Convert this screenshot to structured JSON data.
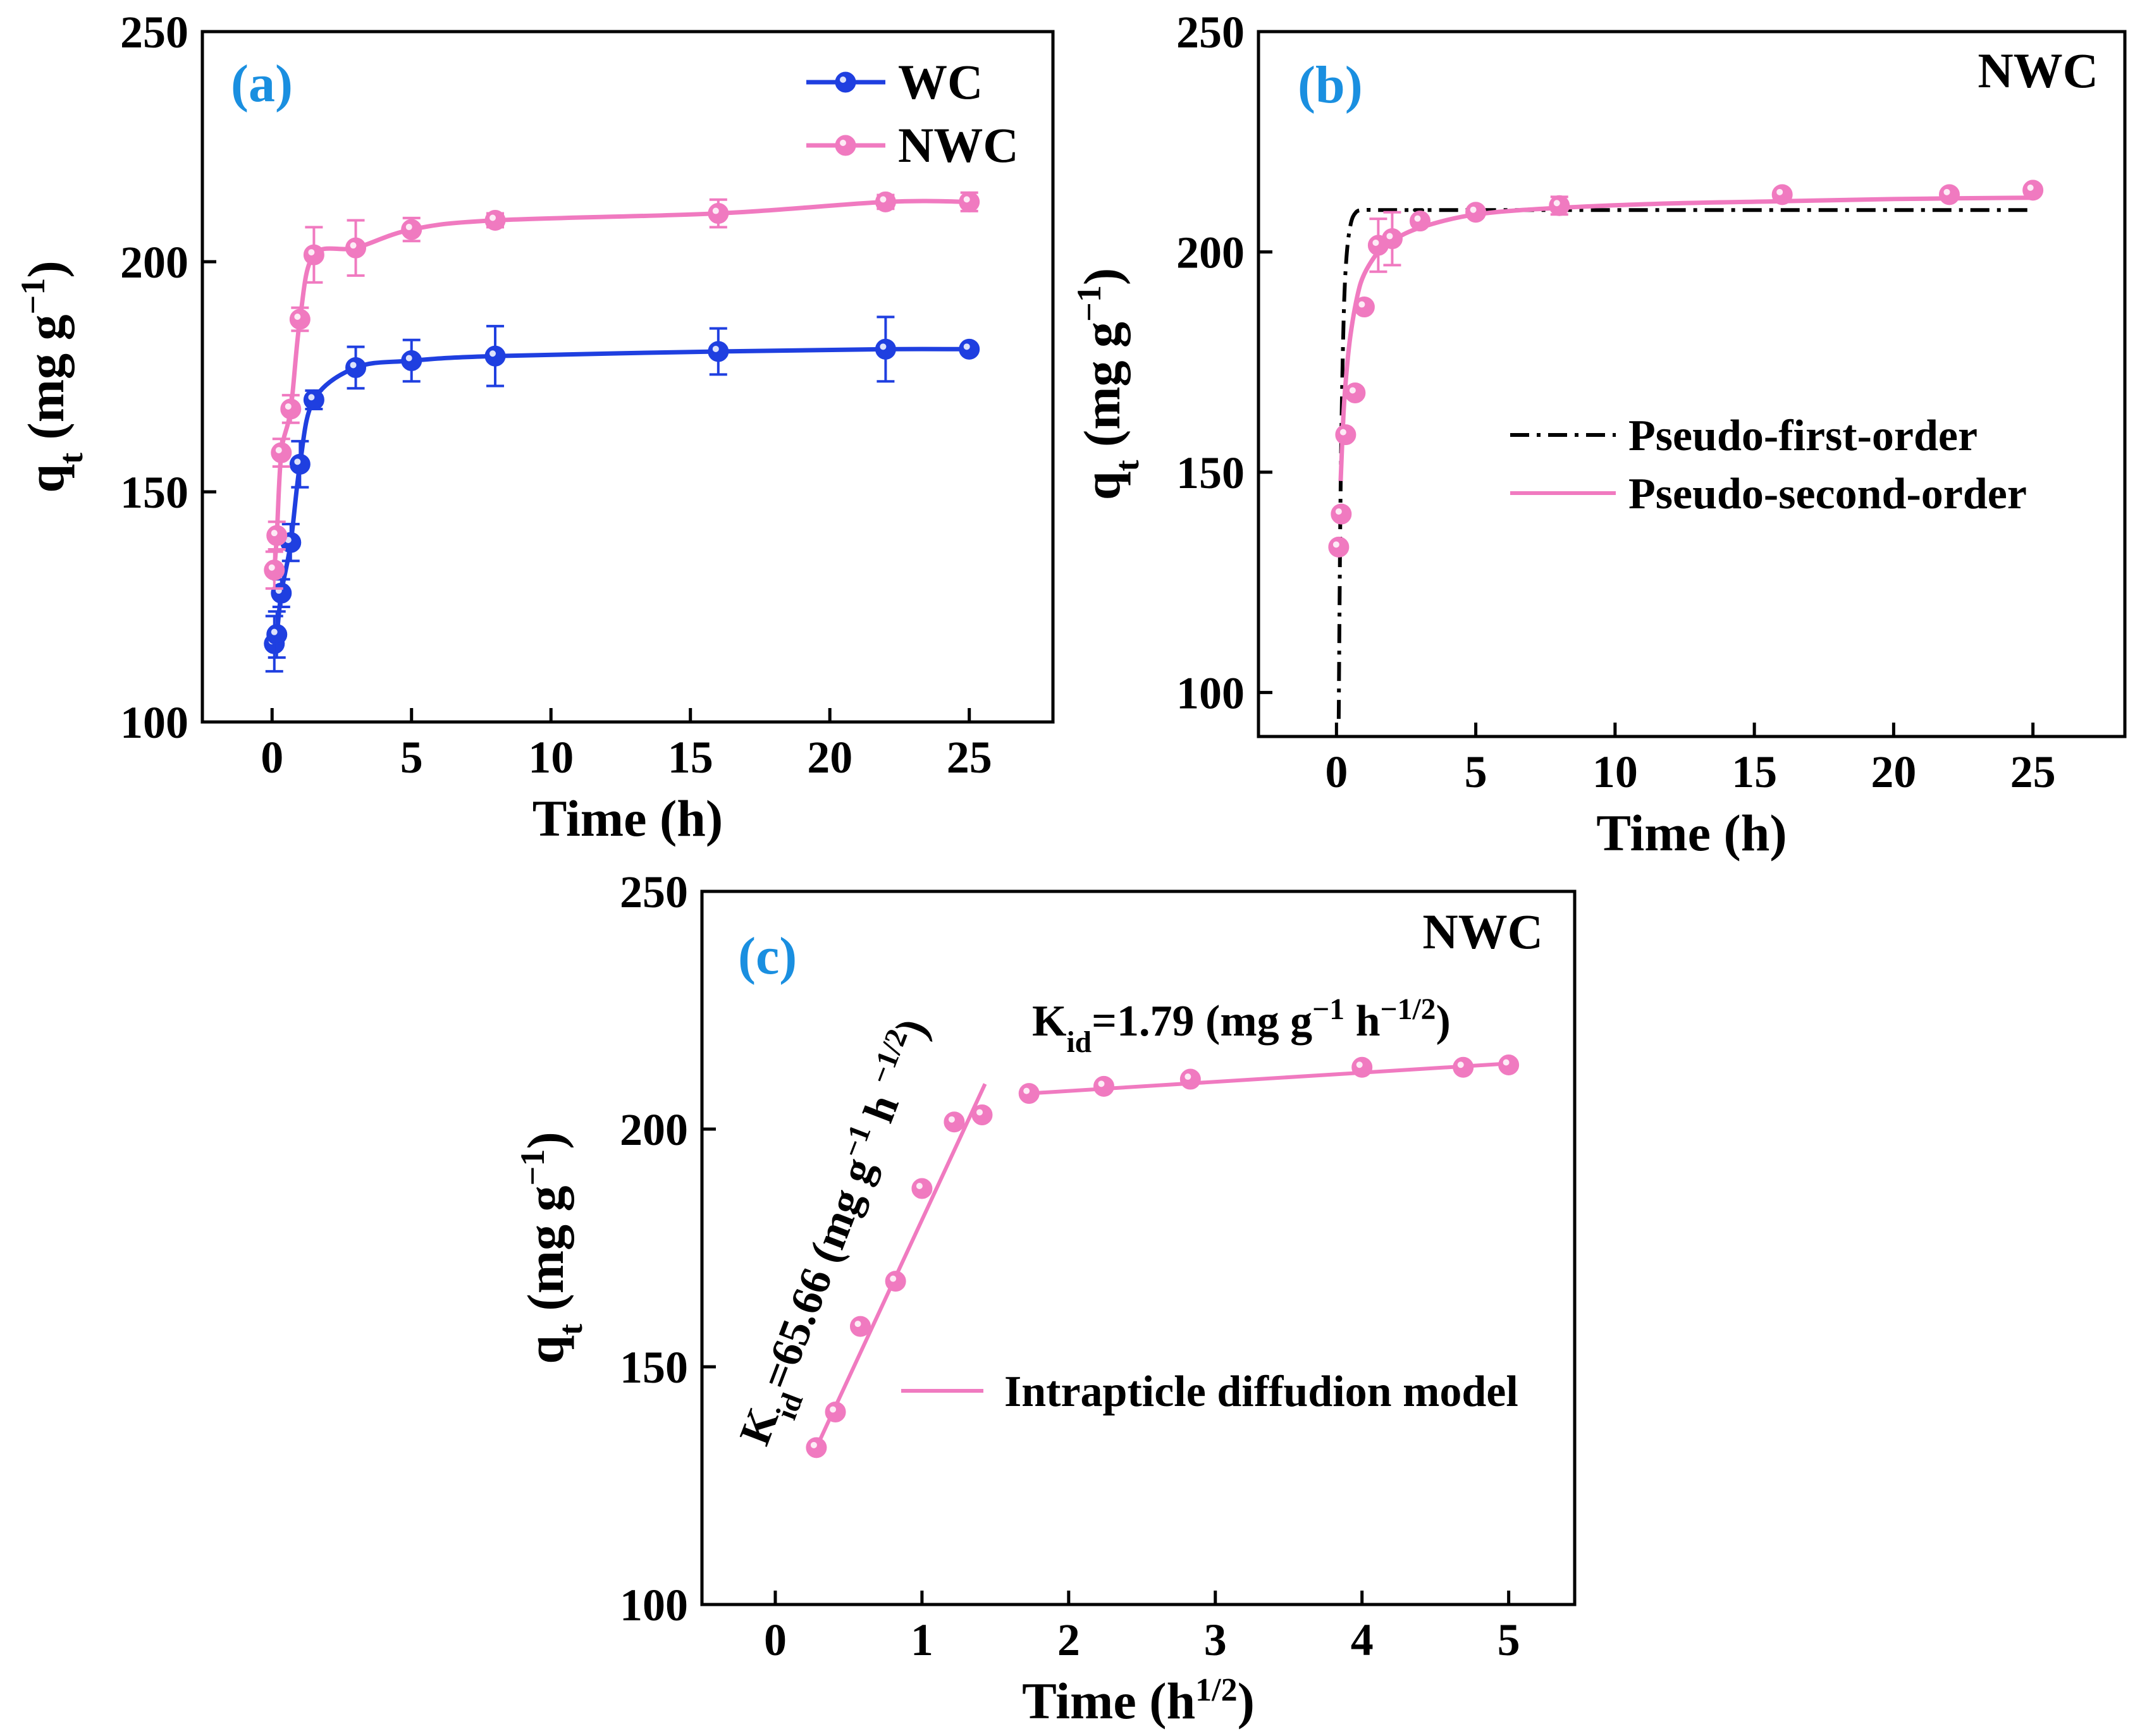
{
  "figure": {
    "primary_color": "#1f3fe0",
    "secondary_color": "#f07ac0",
    "label_color": "#1a8fe0"
  },
  "chart_data": [
    {
      "id": "a",
      "type": "line",
      "panel_label": "(a)",
      "annotation": "",
      "xlabel": "Time (h)",
      "ylabel": "q",
      "ylabel_sub": "t",
      "ylabel_unit": " (mg g",
      "ylabel_sup": "−1",
      "ylabel_close": ")",
      "xlim": [
        -2.5,
        28
      ],
      "ylim": [
        100,
        250
      ],
      "xticks": [
        0,
        5,
        10,
        15,
        20,
        25
      ],
      "yticks": [
        100,
        150,
        200,
        250
      ],
      "legend_position": "top-right",
      "series": [
        {
          "name": "WC",
          "color": "#1f3fe0",
          "x": [
            0.08,
            0.17,
            0.33,
            0.67,
            1.0,
            1.5,
            3.0,
            5.0,
            8.0,
            16.0,
            22.0,
            25.0
          ],
          "y": [
            117,
            119,
            128,
            139,
            156,
            170,
            177,
            178.5,
            179.5,
            180.5,
            181,
            181
          ],
          "err": [
            6,
            5,
            3,
            4,
            5,
            2,
            4.5,
            4.5,
            6.5,
            5,
            7,
            1
          ]
        },
        {
          "name": "NWC",
          "color": "#f07ac0",
          "x": [
            0.08,
            0.17,
            0.33,
            0.67,
            1.0,
            1.5,
            3.0,
            5.0,
            8.0,
            16.0,
            22.0,
            25.0
          ],
          "y": [
            133,
            140.5,
            158.5,
            168,
            187.5,
            201.5,
            203,
            207,
            209,
            210.5,
            213,
            213
          ],
          "err": [
            4,
            3,
            3,
            3,
            2.5,
            6,
            6,
            2.5,
            1.5,
            3,
            1.5,
            2
          ]
        }
      ]
    },
    {
      "id": "b",
      "type": "line",
      "panel_label": "(b)",
      "annotation": "NWC",
      "xlabel": "Time (h)",
      "ylabel": "q",
      "ylabel_sub": "t",
      "ylabel_unit": " (mg g",
      "ylabel_sup": "−1",
      "ylabel_close": ")",
      "xlim": [
        -2.8,
        28.3
      ],
      "ylim": [
        90,
        250
      ],
      "xticks": [
        0,
        5,
        10,
        15,
        20,
        25
      ],
      "yticks": [
        100,
        150,
        200,
        250
      ],
      "legend_position": "center-right",
      "points": {
        "color": "#f07ac0",
        "x": [
          0.08,
          0.17,
          0.33,
          0.67,
          1.0,
          1.5,
          2.0,
          3.0,
          5.0,
          8.0,
          16.0,
          22.0,
          25.0
        ],
        "y": [
          133,
          140.5,
          158.5,
          168,
          187.5,
          201.5,
          203,
          207,
          209,
          210.5,
          213,
          213,
          214
        ],
        "err": [
          0,
          0,
          0,
          0,
          0,
          6,
          6,
          0,
          0,
          2,
          0,
          0,
          0
        ]
      },
      "series": [
        {
          "name": "Pseudo-first-order",
          "color": "#000000",
          "dash": "dashdot",
          "x": [
            0.08,
            0.15,
            0.25,
            0.35,
            0.5,
            0.7,
            1.0,
            1.5,
            2.0,
            3.0,
            5.0,
            25.0
          ],
          "y": [
            94,
            147,
            183,
            198,
            206,
            209,
            209.5,
            209.5,
            209.5,
            209.5,
            209.5,
            209.5
          ]
        },
        {
          "name": "Pseudo-second-order",
          "color": "#f07ac0",
          "dash": "solid",
          "x": [
            0.15,
            0.25,
            0.35,
            0.5,
            0.75,
            1.0,
            1.5,
            2.0,
            3.0,
            5.0,
            8.0,
            12.0,
            16.0,
            20.0,
            25.0
          ],
          "y": [
            148,
            163,
            172,
            181,
            190,
            195,
            200,
            202.5,
            205.5,
            208.5,
            210,
            211,
            211.5,
            212,
            212.3
          ]
        }
      ]
    },
    {
      "id": "c",
      "type": "scatter",
      "panel_label": "(c)",
      "annotation": "NWC",
      "xlabel": "Time (h",
      "xlabel_sup": "1/2",
      "xlabel_close": ")",
      "ylabel": "q",
      "ylabel_sub": "t",
      "ylabel_unit": " (mg g",
      "ylabel_sup": "−1",
      "ylabel_close": ")",
      "xlim": [
        -0.5,
        5.45
      ],
      "ylim": [
        100,
        250
      ],
      "xticks": [
        0,
        1,
        2,
        3,
        4,
        5
      ],
      "yticks": [
        100,
        150,
        200,
        250
      ],
      "legend_position": "lower-right",
      "points": {
        "color": "#f07ac0",
        "x": [
          0.28,
          0.41,
          0.58,
          0.82,
          1.0,
          1.22,
          1.41,
          1.73,
          2.24,
          2.83,
          4.0,
          4.69,
          5.0
        ],
        "y": [
          133,
          140.5,
          158.5,
          168,
          187.5,
          201.5,
          203,
          207.5,
          209,
          210.5,
          213,
          213,
          213.5
        ]
      },
      "series": [
        {
          "name": "Intrapticle diffudion model",
          "color": "#f07ac0",
          "x": [
            0.28,
            1.43
          ],
          "y": [
            133,
            209.5
          ]
        },
        {
          "name": "",
          "color": "#f07ac0",
          "x": [
            1.73,
            5.0
          ],
          "y": [
            207.5,
            213.8
          ]
        }
      ],
      "fit_labels": [
        {
          "pre": "K",
          "sub": "id",
          "mid": "=65.66 (mg g",
          "sup1": "−1",
          "space": " h ",
          "sup2": "−1/2",
          "post": ")"
        },
        {
          "pre": "K",
          "sub": "id",
          "mid": "=1.79 (mg g",
          "sup1": "−1",
          "space": " h",
          "sup2": "−1/2",
          "post": ")"
        }
      ]
    }
  ]
}
